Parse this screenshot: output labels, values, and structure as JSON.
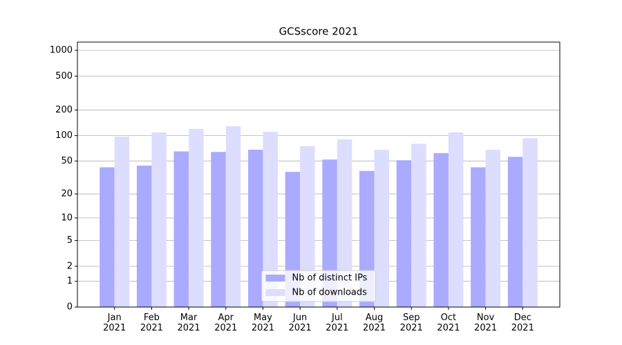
{
  "chart_data": {
    "type": "bar",
    "title": "GCSscore 2021",
    "categories": [
      "Jan\n2021",
      "Feb\n2021",
      "Mar\n2021",
      "Apr\n2021",
      "May\n2021",
      "Jun\n2021",
      "Jul\n2021",
      "Aug\n2021",
      "Sep\n2021",
      "Oct\n2021",
      "Nov\n2021",
      "Dec\n2021"
    ],
    "series": [
      {
        "name": "Nb of distinct IPs",
        "color": "#aaaaff",
        "values": [
          42,
          44,
          65,
          64,
          68,
          37,
          52,
          38,
          51,
          62,
          42,
          56
        ]
      },
      {
        "name": "Nb of downloads",
        "color": "#ddddff",
        "values": [
          97,
          109,
          120,
          129,
          111,
          75,
          90,
          68,
          80,
          109,
          68,
          93
        ]
      }
    ],
    "y_scale": "log1p",
    "ylim": [
      0,
      1250
    ],
    "yticks": [
      0,
      1,
      2,
      5,
      10,
      20,
      50,
      100,
      200,
      500,
      1000
    ],
    "grid": true,
    "legend": "lower center"
  }
}
